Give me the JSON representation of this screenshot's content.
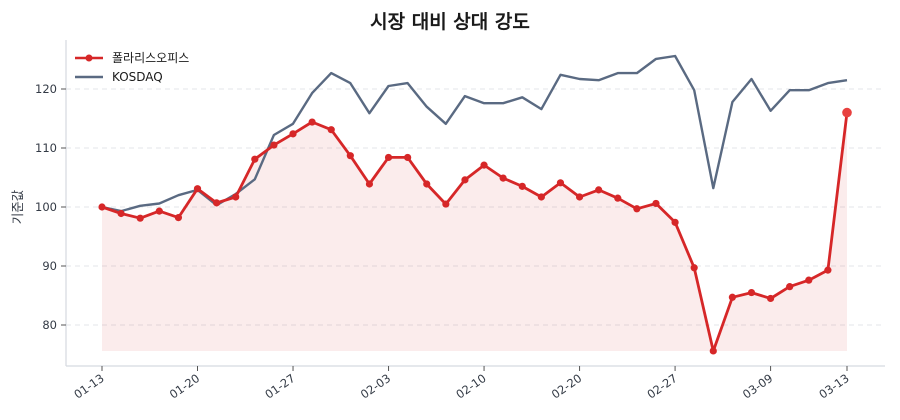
{
  "chart_data": {
    "type": "line",
    "title": "시장 대비 상대 강도",
    "xlabel": "",
    "ylabel": "기준값",
    "ylim": [
      73,
      128
    ],
    "yticks": [
      80,
      90,
      100,
      110,
      120
    ],
    "grid": true,
    "legend_position": "upper left",
    "xtick_labels": [
      "01-13",
      "01-20",
      "01-27",
      "02-03",
      "02-10",
      "02-20",
      "02-27",
      "03-09",
      "03-13"
    ],
    "xtick_indices": [
      0,
      5,
      10,
      15,
      20,
      25,
      30,
      35,
      39
    ],
    "x_count": 40,
    "series": [
      {
        "name": "폴라리스오피스",
        "color": "#d62728",
        "fill": true,
        "markers": true,
        "values": [
          100.0,
          98.9,
          98.1,
          99.3,
          98.2,
          103.1,
          100.7,
          101.7,
          108.1,
          110.5,
          112.4,
          114.4,
          113.1,
          108.7,
          103.9,
          108.4,
          108.4,
          103.9,
          100.5,
          104.6,
          107.1,
          104.9,
          103.5,
          101.7,
          104.1,
          101.7,
          102.9,
          101.5,
          99.7,
          100.6,
          97.4,
          89.7,
          75.6,
          84.7,
          85.5,
          84.5,
          86.5,
          87.6,
          89.3,
          116.0
        ]
      },
      {
        "name": "KOSDAQ",
        "color": "#5a6a82",
        "fill": false,
        "markers": false,
        "values": [
          100.0,
          99.3,
          100.2,
          100.6,
          102.0,
          102.9,
          100.3,
          102.2,
          104.7,
          112.2,
          114.1,
          119.3,
          122.7,
          121.0,
          115.9,
          120.5,
          121.0,
          117.0,
          114.1,
          118.8,
          117.6,
          117.6,
          118.6,
          116.6,
          122.4,
          121.7,
          121.5,
          122.7,
          122.7,
          125.1,
          125.6,
          119.8,
          103.2,
          117.8,
          121.7,
          116.3,
          119.8,
          119.8,
          121.0,
          121.5
        ]
      }
    ]
  }
}
